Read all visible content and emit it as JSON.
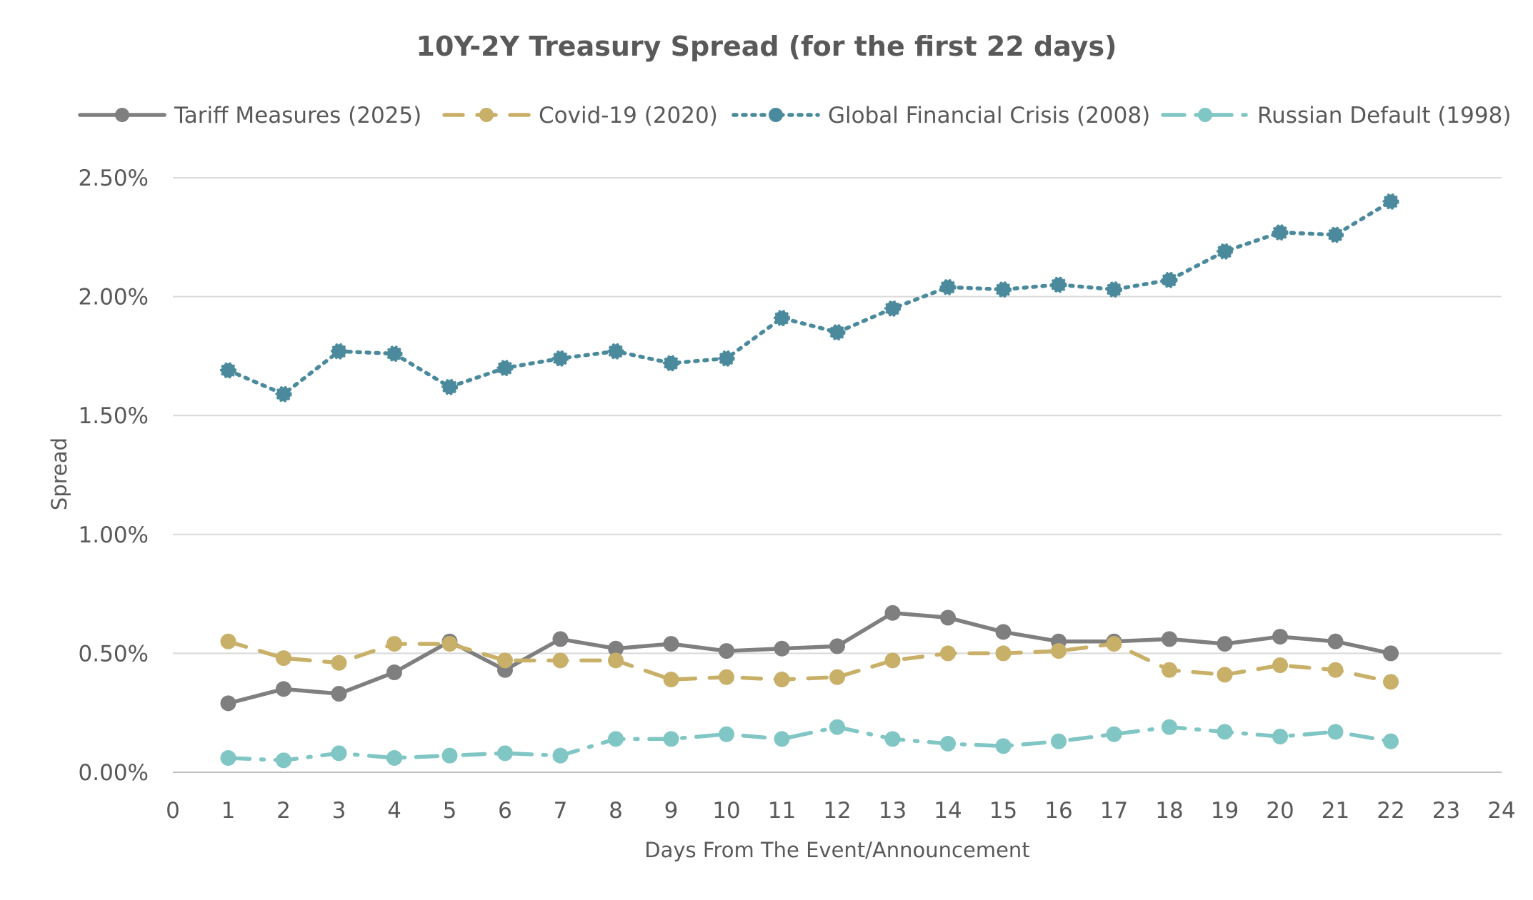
{
  "chart_data": {
    "type": "line",
    "title": "10Y-2Y Treasury Spread (for the first 22 days)",
    "xlabel": "Days From The Event/Announcement",
    "ylabel": "Spread",
    "xlim": [
      0,
      24
    ],
    "ylim": [
      0,
      0.025
    ],
    "x_ticks": [
      "0",
      "1",
      "2",
      "3",
      "4",
      "5",
      "6",
      "7",
      "8",
      "9",
      "10",
      "11",
      "12",
      "13",
      "14",
      "15",
      "16",
      "17",
      "18",
      "19",
      "20",
      "21",
      "22",
      "23",
      "24"
    ],
    "y_ticks": [
      "0.00%",
      "0.50%",
      "1.00%",
      "1.50%",
      "2.00%",
      "2.50%"
    ],
    "y_tick_values": [
      0,
      0.005,
      0.01,
      0.015,
      0.02,
      0.025
    ],
    "grid": "horizontal",
    "legend_position": "top",
    "x": [
      1,
      2,
      3,
      4,
      5,
      6,
      7,
      8,
      9,
      10,
      11,
      12,
      13,
      14,
      15,
      16,
      17,
      18,
      19,
      20,
      21,
      22
    ],
    "series": [
      {
        "name": "Tariff Measures (2025)",
        "color": "#7f7f7f",
        "style": "solid",
        "values": [
          0.0029,
          0.0035,
          0.0033,
          0.0042,
          0.0055,
          0.0043,
          0.0056,
          0.0052,
          0.0054,
          0.0051,
          0.0052,
          0.0053,
          0.0067,
          0.0065,
          0.0059,
          0.0055,
          0.0055,
          0.0056,
          0.0054,
          0.0057,
          0.0055,
          0.005
        ]
      },
      {
        "name": "Covid-19 (2020)",
        "color": "#c9b068",
        "style": "dashed",
        "values": [
          0.0055,
          0.0048,
          0.0046,
          0.0054,
          0.0054,
          0.0047,
          0.0047,
          0.0047,
          0.0039,
          0.004,
          0.0039,
          0.004,
          0.0047,
          0.005,
          0.005,
          0.0051,
          0.0054,
          0.0043,
          0.0041,
          0.0045,
          0.0043,
          0.0038
        ]
      },
      {
        "name": "Global Financial Crisis (2008)",
        "color": "#4a8a9c",
        "style": "dotted",
        "values": [
          0.0169,
          0.0159,
          0.0177,
          0.0176,
          0.0162,
          0.017,
          0.0174,
          0.0177,
          0.0172,
          0.0174,
          0.0191,
          0.0185,
          0.0195,
          0.0204,
          0.0203,
          0.0205,
          0.0203,
          0.0207,
          0.0219,
          0.0227,
          0.0226,
          0.024
        ]
      },
      {
        "name": "Russian Default (1998)",
        "color": "#80c6c4",
        "style": "dashdot",
        "values": [
          0.0006,
          0.0005,
          0.0008,
          0.0006,
          0.0007,
          0.0008,
          0.0007,
          0.0014,
          0.0014,
          0.0016,
          0.0014,
          0.0019,
          0.0014,
          0.0012,
          0.0011,
          0.0013,
          0.0016,
          0.0019,
          0.0017,
          0.0015,
          0.0017,
          0.0013
        ]
      }
    ]
  }
}
